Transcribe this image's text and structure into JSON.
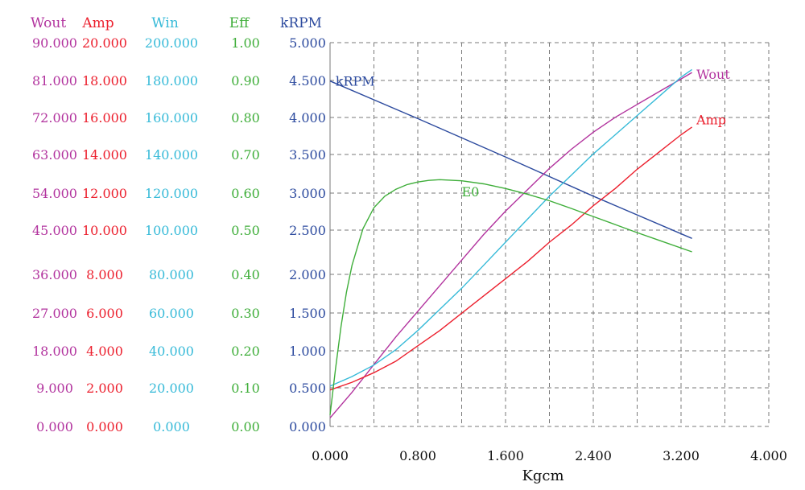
{
  "chart_data": {
    "type": "line",
    "xlabel": "Kgcm",
    "xlim": [
      0,
      4
    ],
    "x_ticks": [
      "0.000",
      "0.800",
      "1.600",
      "2.400",
      "3.200",
      "4.000"
    ],
    "grid": true,
    "grid_style": "dashed",
    "axes": [
      {
        "id": "wout",
        "label": "Wout",
        "color": "#b2339e",
        "ylim": [
          0,
          90
        ],
        "ticks": [
          "0.000",
          "9.000",
          "18.000",
          "27.000",
          "36.000",
          "45.000",
          "54.000",
          "63.000",
          "72.000",
          "81.000",
          "90.000"
        ]
      },
      {
        "id": "amp",
        "label": "Amp",
        "color": "#ec1f2d",
        "ylim": [
          0,
          20
        ],
        "ticks": [
          "0.000",
          "2.000",
          "4.000",
          "6.000",
          "8.000",
          "10.000",
          "12.000",
          "14.000",
          "16.000",
          "18.000",
          "20.000"
        ]
      },
      {
        "id": "win",
        "label": "Win",
        "color": "#36bad8",
        "ylim": [
          0,
          200
        ],
        "ticks": [
          "0.000",
          "20.000",
          "40.000",
          "60.000",
          "80.000",
          "100.000",
          "120.000",
          "140.000",
          "160.000",
          "180.000",
          "200.000"
        ]
      },
      {
        "id": "eff",
        "label": "Eff",
        "color": "#3fae3a",
        "ylim": [
          0,
          1
        ],
        "ticks": [
          "0.00",
          "0.10",
          "0.20",
          "0.30",
          "0.40",
          "0.50",
          "0.60",
          "0.70",
          "0.80",
          "0.90",
          "1.00"
        ]
      },
      {
        "id": "krpm",
        "label": "kRPM",
        "color": "#2c4a9e",
        "ylim": [
          0,
          5
        ],
        "ticks": [
          "0.000",
          "0.500",
          "1.000",
          "1.500",
          "2.000",
          "2.500",
          "3.000",
          "3.500",
          "4.000",
          "4.500",
          "5.000"
        ]
      }
    ],
    "series": [
      {
        "name": "kRPM",
        "axis": "krpm",
        "color": "#2c4a9e",
        "points": [
          [
            0.0,
            4.5
          ],
          [
            0.8,
            4.01
          ],
          [
            1.6,
            3.51
          ],
          [
            2.4,
            3.0
          ],
          [
            3.3,
            2.45
          ]
        ]
      },
      {
        "name": "Wout",
        "axis": "wout",
        "color": "#b2339e",
        "points": [
          [
            0.0,
            2.0
          ],
          [
            0.2,
            8.0
          ],
          [
            0.4,
            14.5
          ],
          [
            0.6,
            21.0
          ],
          [
            0.8,
            27.0
          ],
          [
            1.0,
            33.0
          ],
          [
            1.2,
            39.0
          ],
          [
            1.4,
            45.0
          ],
          [
            1.6,
            50.5
          ],
          [
            1.8,
            55.5
          ],
          [
            2.0,
            60.5
          ],
          [
            2.2,
            65.0
          ],
          [
            2.4,
            69.0
          ],
          [
            2.6,
            72.5
          ],
          [
            2.8,
            75.5
          ],
          [
            3.0,
            78.5
          ],
          [
            3.2,
            81.5
          ],
          [
            3.3,
            83.0
          ]
        ]
      },
      {
        "name": "Win",
        "axis": "win",
        "color": "#36bad8",
        "points": [
          [
            0.0,
            21.0
          ],
          [
            0.2,
            26.0
          ],
          [
            0.4,
            32.0
          ],
          [
            0.6,
            40.0
          ],
          [
            0.8,
            50.0
          ],
          [
            1.0,
            61.0
          ],
          [
            1.2,
            72.0
          ],
          [
            1.4,
            84.0
          ],
          [
            1.6,
            96.0
          ],
          [
            1.8,
            108.0
          ],
          [
            2.0,
            120.0
          ],
          [
            2.2,
            131.0
          ],
          [
            2.4,
            142.0
          ],
          [
            2.6,
            152.0
          ],
          [
            2.8,
            162.0
          ],
          [
            3.0,
            172.0
          ],
          [
            3.2,
            182.0
          ],
          [
            3.3,
            186.0
          ]
        ]
      },
      {
        "name": "Amp",
        "axis": "amp",
        "color": "#ec1f2d",
        "points": [
          [
            0.0,
            1.9
          ],
          [
            0.2,
            2.3
          ],
          [
            0.4,
            2.8
          ],
          [
            0.6,
            3.4
          ],
          [
            0.8,
            4.2
          ],
          [
            1.0,
            5.0
          ],
          [
            1.2,
            5.9
          ],
          [
            1.4,
            6.8
          ],
          [
            1.6,
            7.7
          ],
          [
            1.8,
            8.6
          ],
          [
            2.0,
            9.6
          ],
          [
            2.2,
            10.5
          ],
          [
            2.4,
            11.5
          ],
          [
            2.6,
            12.4
          ],
          [
            2.8,
            13.4
          ],
          [
            3.0,
            14.3
          ],
          [
            3.2,
            15.2
          ],
          [
            3.3,
            15.6
          ]
        ]
      },
      {
        "name": "Eff",
        "axis": "eff",
        "color": "#3fae3a",
        "points": [
          [
            0.0,
            0.03
          ],
          [
            0.05,
            0.15
          ],
          [
            0.1,
            0.26
          ],
          [
            0.15,
            0.35
          ],
          [
            0.2,
            0.42
          ],
          [
            0.3,
            0.515
          ],
          [
            0.4,
            0.57
          ],
          [
            0.5,
            0.6
          ],
          [
            0.6,
            0.618
          ],
          [
            0.7,
            0.63
          ],
          [
            0.8,
            0.637
          ],
          [
            0.9,
            0.641
          ],
          [
            1.0,
            0.643
          ],
          [
            1.2,
            0.64
          ],
          [
            1.4,
            0.632
          ],
          [
            1.6,
            0.62
          ],
          [
            1.8,
            0.605
          ],
          [
            2.0,
            0.588
          ],
          [
            2.2,
            0.568
          ],
          [
            2.4,
            0.547
          ],
          [
            2.6,
            0.526
          ],
          [
            2.8,
            0.505
          ],
          [
            3.0,
            0.485
          ],
          [
            3.3,
            0.455
          ]
        ]
      }
    ],
    "annotations": [
      {
        "text": "kRPM",
        "color": "#2c4a9e",
        "x": 0.05,
        "y": 4.44,
        "axis": "krpm"
      },
      {
        "text": "Wout",
        "color": "#b2339e",
        "x": 3.34,
        "y": 81.5,
        "axis": "wout"
      },
      {
        "text": "Amp",
        "color": "#ec1f2d",
        "x": 3.34,
        "y": 15.75,
        "axis": "amp"
      },
      {
        "text": "E0",
        "color": "#3fae3a",
        "x": 1.2,
        "y": 0.6,
        "axis": "eff"
      }
    ]
  }
}
